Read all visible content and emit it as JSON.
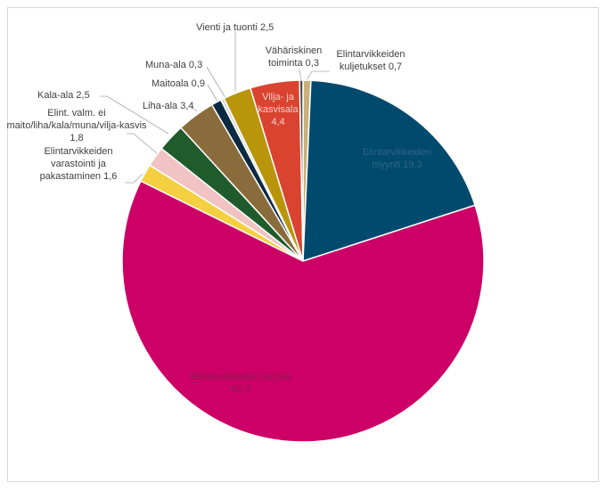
{
  "chart_data": {
    "type": "pie",
    "categories": [
      "Elintarvikkeiden kuljetukset",
      "Elintarvikkeiden myynti",
      "Elintarvikkeiden tarjoilu",
      "Elintarvikkeiden varastointi ja pakastaminen",
      "Elint. valm. ei maito/liha/kala/muna/vilja-kasvis",
      "Kala-ala",
      "Liha-ala",
      "Maitoala",
      "Muna-ala",
      "Vienti ja tuonti",
      "Vilja- ja kasvisala",
      "Vähäriskinen toiminta"
    ],
    "values": [
      0.7,
      19.3,
      62.3,
      1.6,
      1.8,
      2.5,
      3.4,
      0.9,
      0.3,
      2.5,
      4.4,
      0.3
    ],
    "value_labels": [
      "0,7",
      "19,3",
      "62,3",
      "1,6",
      "1,8",
      "2,5",
      "3,4",
      "0,9",
      "0,3",
      "2,5",
      "4,4",
      "0,3"
    ],
    "colors": [
      "#c9b07c",
      "#004a6e",
      "#cc0066",
      "#f4cf3f",
      "#f2c3c3",
      "#1f5b2b",
      "#8a6c3c",
      "#0c2b42",
      "#d9d9d9",
      "#b8950b",
      "#d9432f",
      "#4b4b4b"
    ]
  }
}
